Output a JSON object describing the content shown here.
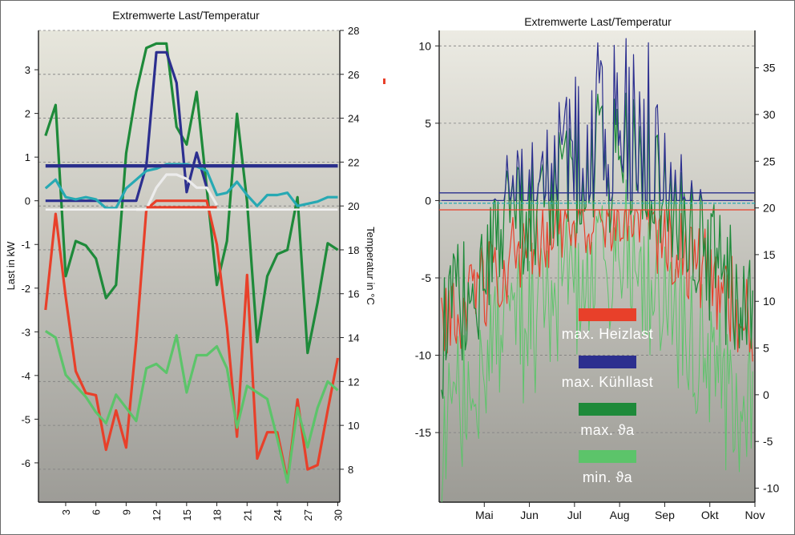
{
  "colors": {
    "heizlast": "#e8402a",
    "kuehllast": "#2c2f8f",
    "max_theta": "#1e8a3a",
    "min_theta": "#5cc46a",
    "cooling_flat": "#2a2f8c",
    "mid_tone": "#27a9b3",
    "pale": "#ececec"
  },
  "chart_data": [
    {
      "type": "line",
      "title": "Extremwerte Last/Temperatur",
      "ylabel": "Last in kW",
      "y2label": "Temperatur in °C",
      "xlim": [
        1,
        30
      ],
      "ylim": [
        -6.9,
        3.9
      ],
      "y2lim": [
        6.5,
        28.0
      ],
      "x_ticks": [
        3,
        6,
        9,
        12,
        15,
        18,
        21,
        24,
        27,
        30
      ],
      "y_ticks": [
        -6,
        -5,
        -4,
        -3,
        -2,
        -1,
        0,
        1,
        2,
        3
      ],
      "y2_ticks": [
        8,
        10,
        12,
        14,
        16,
        18,
        20,
        22,
        24,
        26,
        28
      ],
      "grid": true,
      "series": [
        {
          "color_key": "max_theta",
          "axis": "right",
          "x": [
            1,
            2,
            3,
            4,
            5,
            6,
            7,
            8,
            9,
            10,
            11,
            12,
            13,
            14,
            15,
            16,
            17,
            18,
            19,
            20,
            21,
            22,
            23,
            24,
            25,
            26,
            27,
            28,
            29,
            30
          ],
          "values": [
            23.2,
            24.6,
            16.8,
            18.4,
            18.2,
            17.6,
            15.8,
            16.4,
            22.4,
            25.2,
            27.2,
            27.4,
            27.4,
            23.6,
            22.8,
            25.2,
            20.8,
            16.4,
            18.4,
            24.2,
            20.2,
            13.8,
            16.8,
            17.8,
            18.0,
            20.4,
            13.3,
            15.6,
            18.3,
            18.0
          ]
        },
        {
          "color_key": "kuehllast",
          "axis": "left",
          "x": [
            1,
            2,
            3,
            4,
            5,
            6,
            7,
            8,
            9,
            10,
            11,
            12,
            13,
            14,
            15,
            16,
            17
          ],
          "values": [
            0,
            0,
            0,
            0,
            0,
            0,
            0,
            0,
            0,
            0,
            0.8,
            3.4,
            3.4,
            2.7,
            0.2,
            1.1,
            0.3
          ]
        },
        {
          "color_key": "heizlast",
          "axis": "left",
          "x": [
            1,
            2,
            3,
            4,
            5,
            6,
            7,
            8,
            9,
            10,
            11,
            12,
            13,
            14,
            15,
            16,
            17,
            18,
            19,
            20,
            21,
            22,
            23,
            24,
            25,
            26,
            27,
            28,
            29,
            30
          ],
          "values": [
            -2.5,
            -0.3,
            -2.2,
            -3.9,
            -4.4,
            -4.45,
            -5.7,
            -4.8,
            -5.65,
            -3.2,
            -0.2,
            0,
            0,
            0,
            0,
            0,
            0,
            -1.0,
            -2.9,
            -5.4,
            -1.7,
            -5.9,
            -5.3,
            -5.3,
            -6.4,
            -4.55,
            -6.15,
            -6.05,
            -4.8,
            -3.6
          ]
        },
        {
          "color_key": "min_theta",
          "axis": "right",
          "x": [
            1,
            2,
            3,
            4,
            5,
            6,
            7,
            8,
            9,
            10,
            11,
            12,
            13,
            14,
            15,
            16,
            17,
            18,
            19,
            20,
            21,
            22,
            23,
            24,
            25,
            26,
            27,
            28,
            29,
            30
          ],
          "values": [
            14.3,
            14.0,
            12.3,
            11.8,
            11.3,
            10.6,
            10.1,
            11.4,
            10.8,
            10.2,
            12.6,
            12.8,
            12.4,
            14.1,
            11.5,
            13.2,
            13.2,
            13.6,
            12.6,
            9.9,
            11.8,
            11.5,
            11.2,
            9.4,
            7.4,
            10.8,
            9.0,
            10.8,
            12.0,
            11.6
          ]
        },
        {
          "color_key": "mid_tone",
          "axis": "right",
          "x": [
            1,
            2,
            3,
            4,
            5,
            6,
            7,
            8,
            9,
            10,
            11,
            12,
            13,
            14,
            15,
            16,
            17,
            18,
            19,
            20,
            21,
            22,
            23,
            24,
            25,
            26,
            27,
            28,
            29,
            30
          ],
          "values": [
            20.8,
            21.2,
            20.4,
            20.3,
            20.4,
            20.3,
            19.9,
            19.9,
            20.8,
            21.2,
            21.6,
            21.7,
            21.9,
            21.9,
            21.9,
            21.8,
            21.6,
            20.5,
            20.6,
            21.1,
            20.5,
            20.0,
            20.5,
            20.5,
            20.6,
            20.0,
            20.1,
            20.2,
            20.4,
            20.4
          ]
        },
        {
          "color_key": "pale",
          "axis": "left",
          "x": [
            10,
            11,
            12,
            13,
            14,
            15,
            16,
            17,
            18
          ],
          "values": [
            -0.2,
            -0.2,
            0.3,
            0.6,
            0.6,
            0.5,
            0.3,
            0.3,
            -0.1
          ]
        },
        {
          "color_key": "cooling_flat",
          "axis": "left",
          "x": [
            1,
            30
          ],
          "values": [
            0.8,
            0.8
          ]
        },
        {
          "color_key": "heizlast",
          "axis": "left",
          "x": [
            11,
            18
          ],
          "values": [
            -0.15,
            -0.15
          ]
        }
      ]
    },
    {
      "type": "line",
      "title": "Extremwerte Last/Temperatur",
      "x_ticks": [
        "Mai",
        "Jun",
        "Jul",
        "Aug",
        "Sep",
        "Okt",
        "Nov"
      ],
      "xlim": [
        0,
        7
      ],
      "ylim": [
        -19.5,
        11.0
      ],
      "y2lim": [
        -11.5,
        39.0
      ],
      "y_ticks": [
        -15,
        -10,
        -5,
        0,
        5,
        10
      ],
      "y2_ticks": [
        -10,
        -5,
        0,
        5,
        10,
        15,
        20,
        25,
        30,
        35
      ],
      "grid": true,
      "legend": [
        {
          "label": "max. Heizlast",
          "color_key": "heizlast"
        },
        {
          "label": "max. Kühllast",
          "color_key": "kuehllast"
        },
        {
          "label": "max. ϑa",
          "color_key": "max_theta"
        },
        {
          "label": "min. ϑa",
          "color_key": "min_theta"
        }
      ],
      "legend_position": "center"
    }
  ]
}
